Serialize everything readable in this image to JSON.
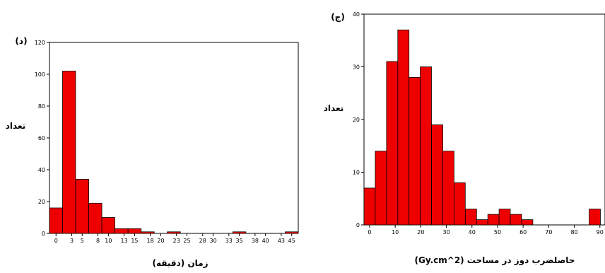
{
  "chart_data": [
    {
      "type": "bar",
      "panel_label": "(د)",
      "title": "",
      "xlabel": "زمان (دقیقه)",
      "ylabel": "تعداد",
      "ylim": [
        0,
        120
      ],
      "yticks": [
        "0",
        "20",
        "40",
        "60",
        "80",
        "100",
        "120"
      ],
      "xticks": [
        "0",
        "3",
        "5",
        "8",
        "10",
        "13",
        "15",
        "18",
        "20",
        "23",
        "25",
        "28",
        "30",
        "33",
        "35",
        "38",
        "40",
        "43",
        "45"
      ],
      "bin_width": 2.5,
      "bins_start": [
        -1.25,
        1.25,
        3.75,
        6.25,
        8.75,
        11.25,
        13.75,
        16.25,
        18.75,
        21.25,
        23.75,
        26.25,
        28.75,
        31.25,
        33.75,
        36.25,
        38.75,
        41.25,
        43.75
      ],
      "values": [
        16,
        102,
        34,
        19,
        10,
        3,
        3,
        1,
        0,
        1,
        0,
        0,
        0,
        0,
        1,
        0,
        0,
        0,
        1
      ],
      "bar_color": "#ee0000",
      "grid": false
    },
    {
      "type": "bar",
      "panel_label": "(ج)",
      "title": "",
      "xlabel": "حاصلضرب دوز در مساحت (Gy.cm^2)",
      "ylabel": "تعداد",
      "ylim": [
        0,
        40
      ],
      "yticks": [
        "0",
        "10",
        "20",
        "30",
        "40"
      ],
      "xticks": [
        "0",
        "10",
        "20",
        "30",
        "40",
        "50",
        "60",
        "70",
        "80",
        "90"
      ],
      "bin_width": 4.4,
      "bins_start": [
        -2.2,
        2.2,
        6.6,
        11.0,
        15.4,
        19.8,
        24.2,
        28.6,
        33.0,
        37.4,
        41.8,
        46.2,
        50.6,
        55.0,
        59.4,
        63.8,
        68.2,
        72.6,
        77.0,
        81.4,
        85.8
      ],
      "values": [
        7,
        14,
        31,
        37,
        28,
        30,
        19,
        14,
        8,
        3,
        1,
        2,
        3,
        2,
        1,
        0,
        0,
        0,
        0,
        0,
        3
      ],
      "bar_color": "#ee0000",
      "grid": false
    }
  ]
}
